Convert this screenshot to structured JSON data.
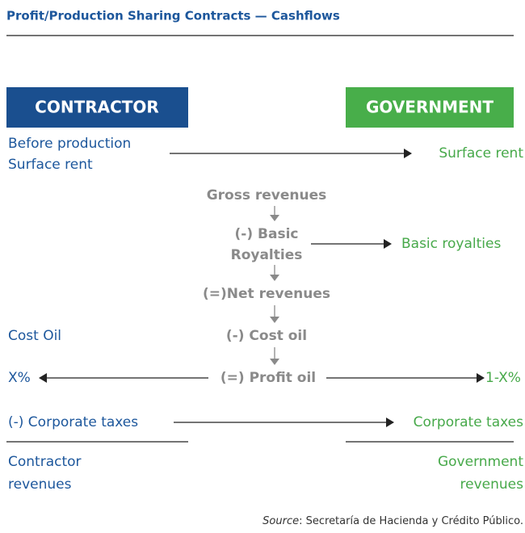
{
  "title": "Profit/Production Sharing Contracts — Cashflows",
  "headers": {
    "contractor": "CONTRACTOR",
    "government": "GOVERNMENT"
  },
  "contractor": {
    "before_production": [
      "Before production",
      "Surface rent"
    ],
    "cost_oil": "Cost Oil",
    "share": "X%",
    "taxes": "(-) Corporate taxes",
    "revenues": [
      "Contractor",
      "revenues"
    ]
  },
  "flow": {
    "gross": "Gross revenues",
    "royalties": [
      "(-) Basic",
      "Royalties"
    ],
    "net": "(=)Net revenues",
    "cost_oil": "(-) Cost oil",
    "profit_oil": "(=) Profit oil"
  },
  "government": {
    "surface_rent": "Surface rent",
    "royalties": "Basic royalties",
    "share": "1-X%",
    "taxes": "Corporate taxes",
    "revenues": [
      "Government",
      "revenues"
    ]
  },
  "source": {
    "label": "Source",
    "text": ": Secretaría de Hacienda y Crédito Público."
  }
}
